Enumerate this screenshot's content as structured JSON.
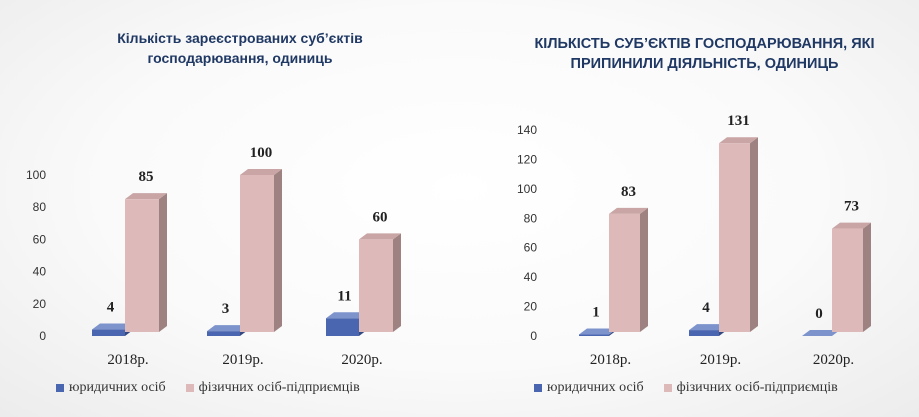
{
  "colors": {
    "legal": "#4a66b0",
    "legal_side": "#34497f",
    "legal_top": "#7d93cc",
    "individual": "#ddb9b9",
    "individual_side": "#9e8282",
    "individual_top": "#c9a5a5",
    "title": "#1f3864"
  },
  "chart_data": [
    {
      "type": "bar",
      "title_line1": "Кількість зареєстрованих суб’єктів",
      "title_line2": "господарювання, одиниць",
      "categories": [
        "2018р.",
        "2019р.",
        "2020р."
      ],
      "series": [
        {
          "name": "юридичних осіб",
          "values": [
            4,
            3,
            11
          ]
        },
        {
          "name": "фізичних осіб-підприємців",
          "values": [
            85,
            100,
            60
          ]
        }
      ],
      "ylim": [
        0,
        100
      ],
      "yticks": [
        0,
        20,
        40,
        60,
        80,
        100
      ],
      "legend": "bottom"
    },
    {
      "type": "bar",
      "title_line1": "КІЛЬКІСТЬ СУБ’ЄКТІВ ГОСПОДАРЮВАННЯ, ЯКІ",
      "title_line2": "ПРИПИНИЛИ ДІЯЛЬНІСТЬ, ОДИНИЦЬ",
      "categories": [
        "2018р.",
        "2019р.",
        "2020р."
      ],
      "series": [
        {
          "name": "юридичних осіб",
          "values": [
            1,
            4,
            0
          ]
        },
        {
          "name": "фізичних осіб-підприємців",
          "values": [
            83,
            131,
            73
          ]
        }
      ],
      "ylim": [
        0,
        140
      ],
      "yticks": [
        0,
        20,
        40,
        60,
        80,
        100,
        120,
        140
      ],
      "legend": "bottom"
    }
  ]
}
